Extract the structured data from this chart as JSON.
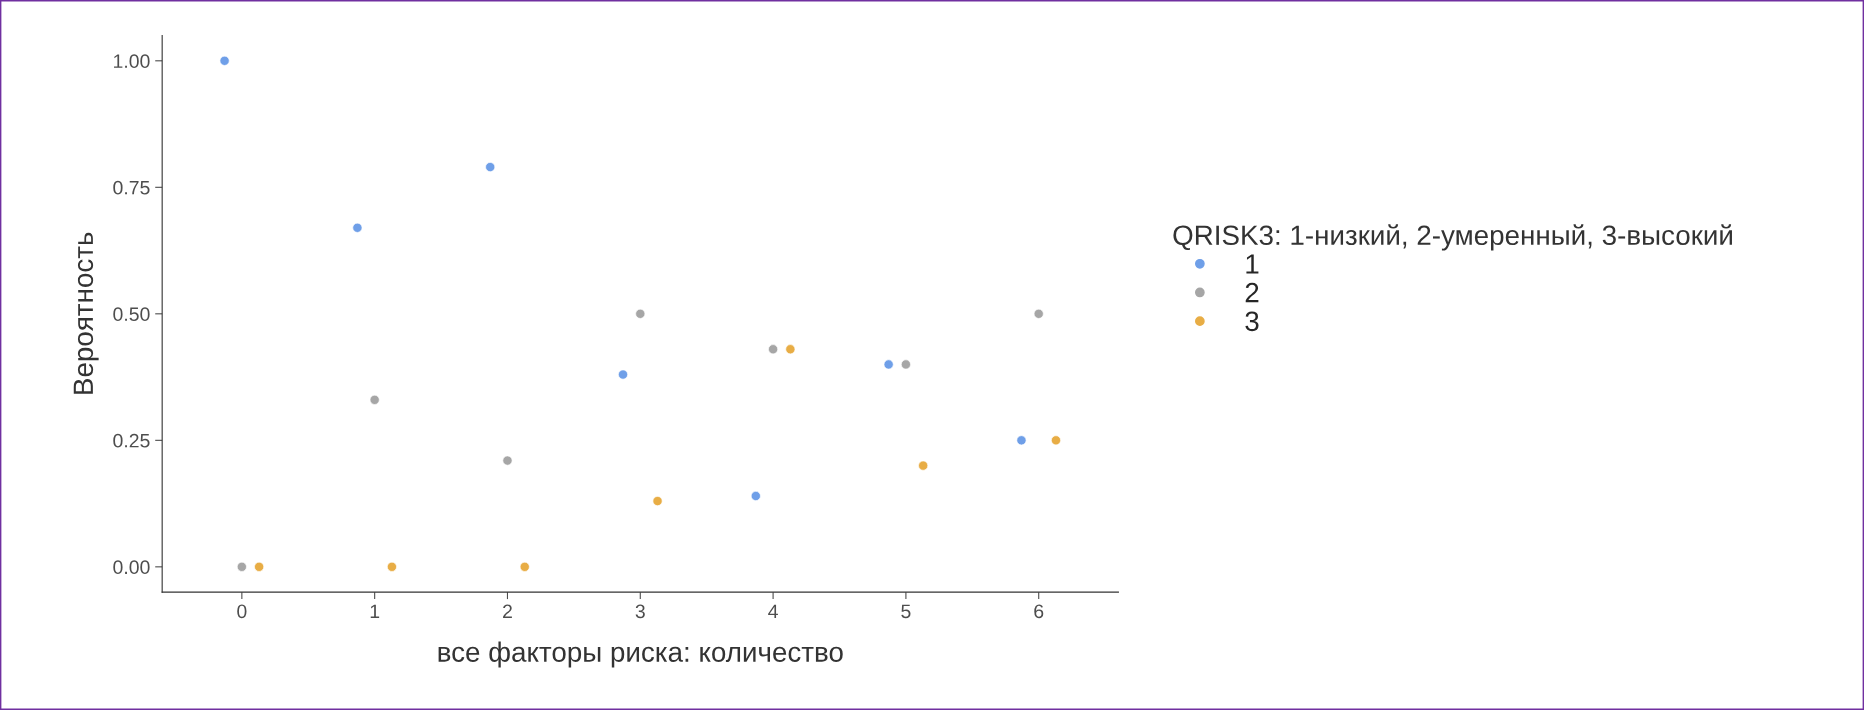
{
  "chart_data": {
    "type": "scatter",
    "xlabel": "все факторы риска: количество",
    "ylabel": "Вероятность",
    "legend_title": "QRISK3: 1-низкий, 2-умеренный, 3-высокий",
    "series": [
      {
        "name": "1",
        "color": "#6f9fe8",
        "x": [
          -0.13,
          0.87,
          1.87,
          2.87,
          3.87,
          4.87,
          5.87
        ],
        "values": [
          1.0,
          0.67,
          0.79,
          0.38,
          0.14,
          0.4,
          0.25
        ]
      },
      {
        "name": "2",
        "color": "#a6a6a6",
        "x": [
          0,
          1,
          2,
          3,
          4,
          5,
          6
        ],
        "values": [
          0.0,
          0.33,
          0.21,
          0.5,
          0.43,
          0.4,
          0.5
        ]
      },
      {
        "name": "3",
        "color": "#e8ad45",
        "x": [
          0.13,
          1.13,
          2.13,
          3.13,
          4.13,
          5.13,
          6.13
        ],
        "values": [
          0.0,
          0.0,
          0.0,
          0.13,
          0.43,
          0.2,
          0.25
        ]
      }
    ],
    "xlim": [
      -0.6,
      6.6
    ],
    "ylim": [
      -0.05,
      1.05
    ],
    "xticks": [
      0,
      1,
      2,
      3,
      4,
      5,
      6
    ],
    "yticks": [
      {
        "value": 0,
        "label": "0.00"
      },
      {
        "value": 0.25,
        "label": "0.25"
      },
      {
        "value": 0.5,
        "label": "0.50"
      },
      {
        "value": 0.75,
        "label": "0.75"
      },
      {
        "value": 1,
        "label": "1.00"
      }
    ],
    "grid": false,
    "legend": "right",
    "marker": "circle"
  }
}
